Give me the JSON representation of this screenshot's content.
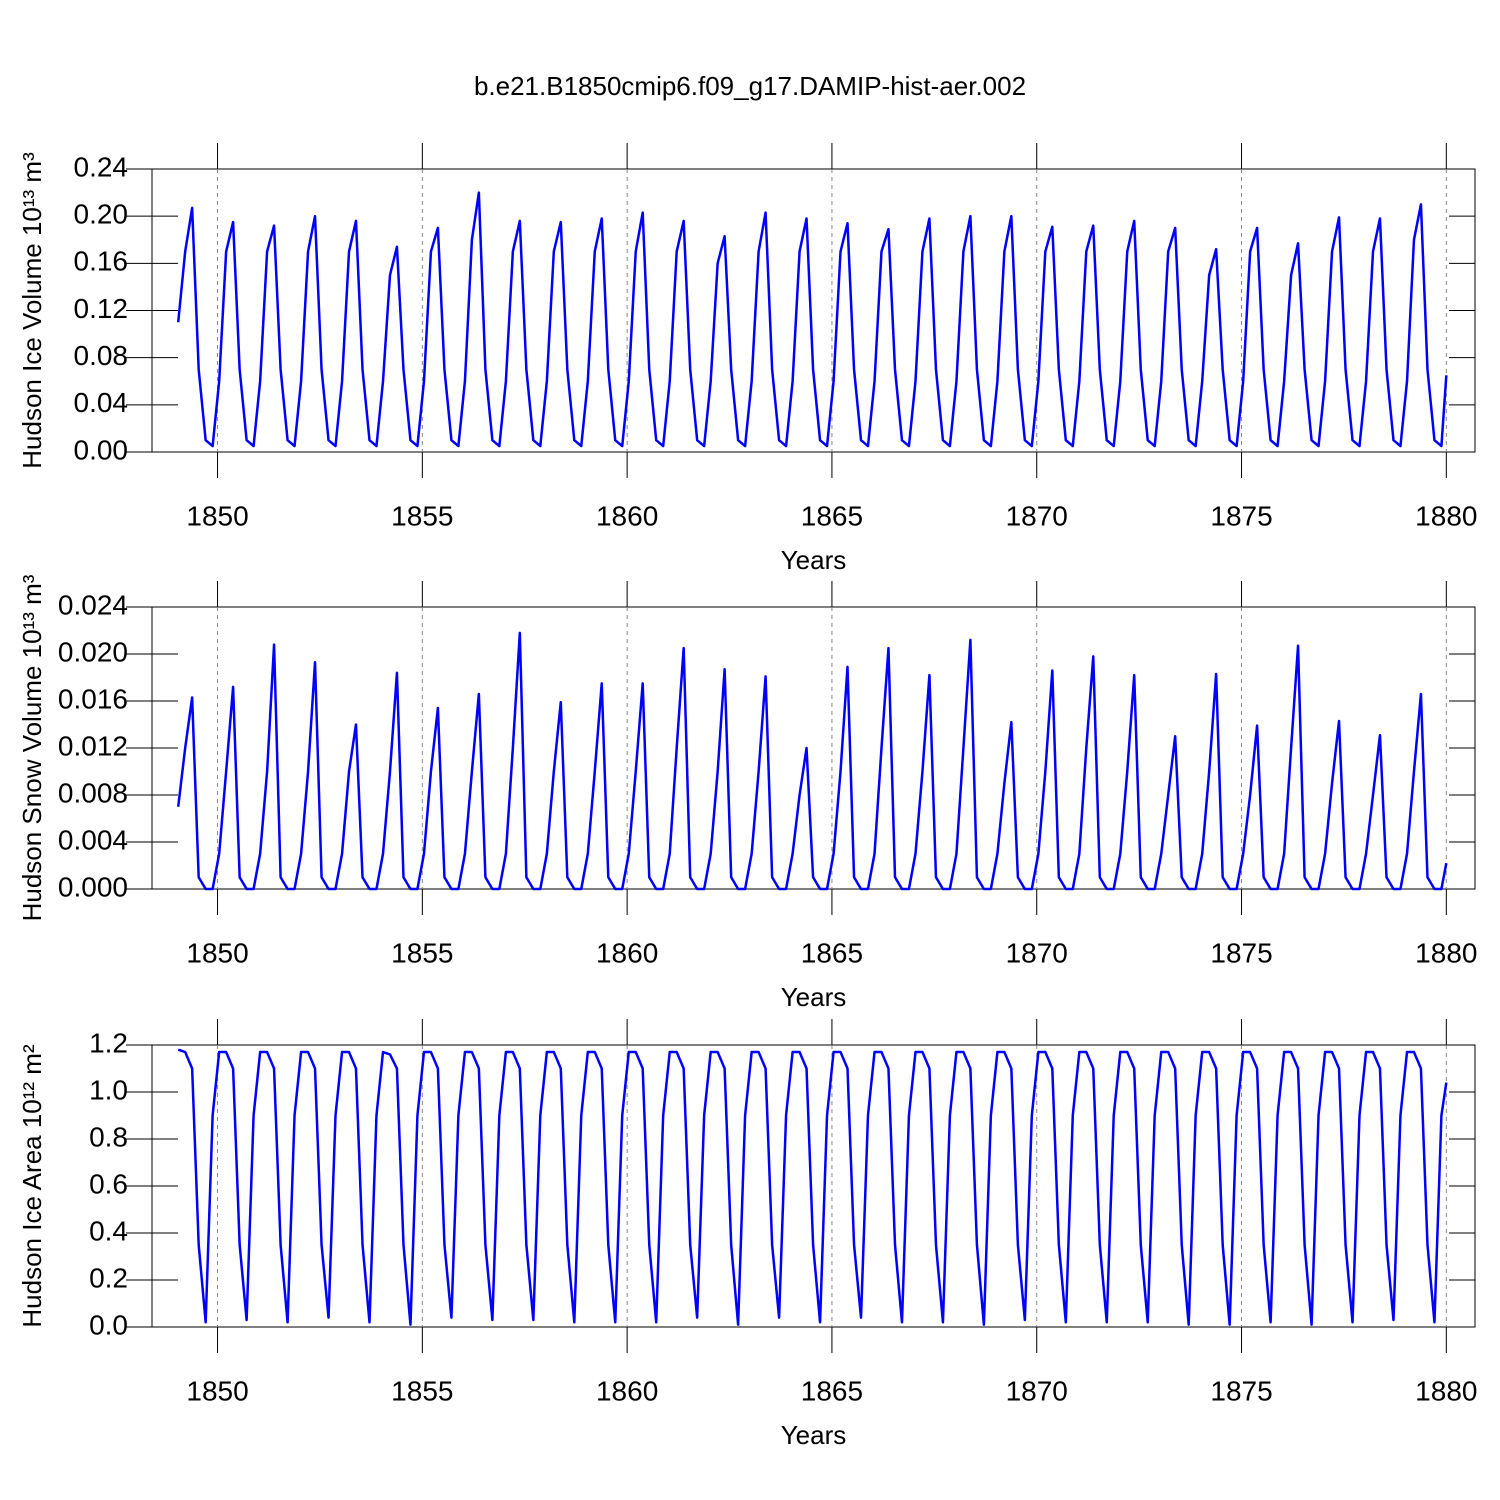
{
  "chart_data": [
    {
      "type": "line",
      "title": "b.e21.B1850cmip6.f09_g17.DAMIP-hist-aer.002",
      "ylabel": "Hudson Ice Volume 10¹³ m³",
      "xlabel": "Years",
      "color": "#0000ff",
      "xgrid": true,
      "xlim": [
        1848.4,
        1880.7
      ],
      "xticks": [
        1850,
        1855,
        1860,
        1865,
        1870,
        1875,
        1880
      ],
      "ylim": [
        0,
        0.24
      ],
      "yticks": [
        {
          "value": 0,
          "label": "0.00"
        },
        0.04,
        0.08,
        0.12,
        0.16,
        {
          "value": 0.2,
          "label": "0.20"
        },
        0.24
      ],
      "x": [
        1849.04,
        1849.21,
        1849.38,
        1849.54,
        1849.71,
        1849.88,
        1850.04,
        1850.21,
        1850.38,
        1850.54,
        1850.71,
        1850.88,
        1851.04,
        1851.21,
        1851.38,
        1851.54,
        1851.71,
        1851.88,
        1852.04,
        1852.21,
        1852.38,
        1852.54,
        1852.71,
        1852.88,
        1853.04,
        1853.21,
        1853.38,
        1853.54,
        1853.71,
        1853.88,
        1854.04,
        1854.21,
        1854.38,
        1854.54,
        1854.71,
        1854.88,
        1855.04,
        1855.21,
        1855.38,
        1855.54,
        1855.71,
        1855.88,
        1856.04,
        1856.21,
        1856.38,
        1856.54,
        1856.71,
        1856.88,
        1857.04,
        1857.21,
        1857.38,
        1857.54,
        1857.71,
        1857.88,
        1858.04,
        1858.21,
        1858.38,
        1858.54,
        1858.71,
        1858.88,
        1859.04,
        1859.21,
        1859.38,
        1859.54,
        1859.71,
        1859.88,
        1860.04,
        1860.21,
        1860.38,
        1860.54,
        1860.71,
        1860.88,
        1861.04,
        1861.21,
        1861.38,
        1861.54,
        1861.71,
        1861.88,
        1862.04,
        1862.21,
        1862.38,
        1862.54,
        1862.71,
        1862.88,
        1863.04,
        1863.21,
        1863.38,
        1863.54,
        1863.71,
        1863.88,
        1864.04,
        1864.21,
        1864.38,
        1864.54,
        1864.71,
        1864.88,
        1865.04,
        1865.21,
        1865.38,
        1865.54,
        1865.71,
        1865.88,
        1866.04,
        1866.21,
        1866.38,
        1866.54,
        1866.71,
        1866.88,
        1867.04,
        1867.21,
        1867.38,
        1867.54,
        1867.71,
        1867.88,
        1868.04,
        1868.21,
        1868.38,
        1868.54,
        1868.71,
        1868.88,
        1869.04,
        1869.21,
        1869.38,
        1869.54,
        1869.71,
        1869.88,
        1870.04,
        1870.21,
        1870.38,
        1870.54,
        1870.71,
        1870.88,
        1871.04,
        1871.21,
        1871.38,
        1871.54,
        1871.71,
        1871.88,
        1872.04,
        1872.21,
        1872.38,
        1872.54,
        1872.71,
        1872.88,
        1873.04,
        1873.21,
        1873.38,
        1873.54,
        1873.71,
        1873.88,
        1874.04,
        1874.21,
        1874.38,
        1874.54,
        1874.71,
        1874.88,
        1875.04,
        1875.21,
        1875.38,
        1875.54,
        1875.71,
        1875.88,
        1876.04,
        1876.21,
        1876.38,
        1876.54,
        1876.71,
        1876.88,
        1877.04,
        1877.21,
        1877.38,
        1877.54,
        1877.71,
        1877.88,
        1878.04,
        1878.21,
        1878.38,
        1878.54,
        1878.71,
        1878.88,
        1879.04,
        1879.21,
        1879.38,
        1879.54,
        1879.71,
        1879.88,
        1880.0
      ],
      "values": [
        0.11,
        0.17,
        0.207,
        0.07,
        0.01,
        0.005,
        0.06,
        0.17,
        0.195,
        0.07,
        0.01,
        0.005,
        0.06,
        0.17,
        0.192,
        0.07,
        0.01,
        0.005,
        0.06,
        0.17,
        0.2,
        0.07,
        0.01,
        0.005,
        0.06,
        0.17,
        0.196,
        0.07,
        0.01,
        0.005,
        0.06,
        0.15,
        0.174,
        0.07,
        0.01,
        0.005,
        0.06,
        0.17,
        0.19,
        0.07,
        0.01,
        0.005,
        0.06,
        0.18,
        0.22,
        0.07,
        0.01,
        0.005,
        0.06,
        0.17,
        0.196,
        0.07,
        0.01,
        0.005,
        0.06,
        0.17,
        0.195,
        0.07,
        0.01,
        0.005,
        0.06,
        0.17,
        0.198,
        0.07,
        0.01,
        0.005,
        0.06,
        0.17,
        0.203,
        0.07,
        0.01,
        0.005,
        0.06,
        0.17,
        0.196,
        0.07,
        0.01,
        0.005,
        0.06,
        0.16,
        0.183,
        0.07,
        0.01,
        0.005,
        0.06,
        0.17,
        0.203,
        0.07,
        0.01,
        0.005,
        0.06,
        0.17,
        0.198,
        0.07,
        0.01,
        0.005,
        0.06,
        0.17,
        0.194,
        0.07,
        0.01,
        0.005,
        0.06,
        0.17,
        0.189,
        0.07,
        0.01,
        0.005,
        0.06,
        0.17,
        0.198,
        0.07,
        0.01,
        0.005,
        0.06,
        0.17,
        0.2,
        0.07,
        0.01,
        0.005,
        0.06,
        0.17,
        0.2,
        0.07,
        0.01,
        0.005,
        0.06,
        0.17,
        0.191,
        0.07,
        0.01,
        0.005,
        0.06,
        0.17,
        0.192,
        0.07,
        0.01,
        0.005,
        0.06,
        0.17,
        0.196,
        0.07,
        0.01,
        0.005,
        0.06,
        0.17,
        0.19,
        0.07,
        0.01,
        0.005,
        0.06,
        0.15,
        0.172,
        0.07,
        0.01,
        0.005,
        0.06,
        0.17,
        0.19,
        0.07,
        0.01,
        0.005,
        0.06,
        0.15,
        0.177,
        0.07,
        0.01,
        0.005,
        0.06,
        0.17,
        0.199,
        0.07,
        0.01,
        0.005,
        0.06,
        0.17,
        0.198,
        0.07,
        0.01,
        0.005,
        0.06,
        0.18,
        0.21,
        0.07,
        0.01,
        0.005,
        0.065
      ]
    },
    {
      "type": "line",
      "ylabel": "Hudson Snow Volume 10¹³ m³",
      "xlabel": "Years",
      "color": "#0000ff",
      "xgrid": true,
      "xlim": [
        1848.4,
        1880.7
      ],
      "xticks": [
        1850,
        1855,
        1860,
        1865,
        1870,
        1875,
        1880
      ],
      "ylim": [
        0,
        0.024
      ],
      "yticks": [
        {
          "value": 0,
          "label": "0.000"
        },
        0.004,
        0.008,
        0.012,
        0.016,
        {
          "value": 0.02,
          "label": "0.020"
        },
        0.024
      ],
      "x": [
        1849.04,
        1849.21,
        1849.38,
        1849.54,
        1849.71,
        1849.88,
        1850.04,
        1850.21,
        1850.38,
        1850.54,
        1850.71,
        1850.88,
        1851.04,
        1851.21,
        1851.38,
        1851.54,
        1851.71,
        1851.88,
        1852.04,
        1852.21,
        1852.38,
        1852.54,
        1852.71,
        1852.88,
        1853.04,
        1853.21,
        1853.38,
        1853.54,
        1853.71,
        1853.88,
        1854.04,
        1854.21,
        1854.38,
        1854.54,
        1854.71,
        1854.88,
        1855.04,
        1855.21,
        1855.38,
        1855.54,
        1855.71,
        1855.88,
        1856.04,
        1856.21,
        1856.38,
        1856.54,
        1856.71,
        1856.88,
        1857.04,
        1857.21,
        1857.38,
        1857.54,
        1857.71,
        1857.88,
        1858.04,
        1858.21,
        1858.38,
        1858.54,
        1858.71,
        1858.88,
        1859.04,
        1859.21,
        1859.38,
        1859.54,
        1859.71,
        1859.88,
        1860.04,
        1860.21,
        1860.38,
        1860.54,
        1860.71,
        1860.88,
        1861.04,
        1861.21,
        1861.38,
        1861.54,
        1861.71,
        1861.88,
        1862.04,
        1862.21,
        1862.38,
        1862.54,
        1862.71,
        1862.88,
        1863.04,
        1863.21,
        1863.38,
        1863.54,
        1863.71,
        1863.88,
        1864.04,
        1864.21,
        1864.38,
        1864.54,
        1864.71,
        1864.88,
        1865.04,
        1865.21,
        1865.38,
        1865.54,
        1865.71,
        1865.88,
        1866.04,
        1866.21,
        1866.38,
        1866.54,
        1866.71,
        1866.88,
        1867.04,
        1867.21,
        1867.38,
        1867.54,
        1867.71,
        1867.88,
        1868.04,
        1868.21,
        1868.38,
        1868.54,
        1868.71,
        1868.88,
        1869.04,
        1869.21,
        1869.38,
        1869.54,
        1869.71,
        1869.88,
        1870.04,
        1870.21,
        1870.38,
        1870.54,
        1870.71,
        1870.88,
        1871.04,
        1871.21,
        1871.38,
        1871.54,
        1871.71,
        1871.88,
        1872.04,
        1872.21,
        1872.38,
        1872.54,
        1872.71,
        1872.88,
        1873.04,
        1873.21,
        1873.38,
        1873.54,
        1873.71,
        1873.88,
        1874.04,
        1874.21,
        1874.38,
        1874.54,
        1874.71,
        1874.88,
        1875.04,
        1875.21,
        1875.38,
        1875.54,
        1875.71,
        1875.88,
        1876.04,
        1876.21,
        1876.38,
        1876.54,
        1876.71,
        1876.88,
        1877.04,
        1877.21,
        1877.38,
        1877.54,
        1877.71,
        1877.88,
        1878.04,
        1878.21,
        1878.38,
        1878.54,
        1878.71,
        1878.88,
        1879.04,
        1879.21,
        1879.38,
        1879.54,
        1879.71,
        1879.88,
        1880.0
      ],
      "values": [
        0.007,
        0.012,
        0.0163,
        0.001,
        0,
        0,
        0.003,
        0.01,
        0.0172,
        0.001,
        0,
        0,
        0.003,
        0.01,
        0.0208,
        0.001,
        0,
        0,
        0.003,
        0.01,
        0.0193,
        0.001,
        0,
        0,
        0.003,
        0.01,
        0.014,
        0.001,
        0,
        0,
        0.003,
        0.01,
        0.0184,
        0.001,
        0,
        0,
        0.003,
        0.01,
        0.0154,
        0.001,
        0,
        0,
        0.003,
        0.01,
        0.0166,
        0.001,
        0,
        0,
        0.003,
        0.012,
        0.0218,
        0.001,
        0,
        0,
        0.003,
        0.01,
        0.0159,
        0.001,
        0,
        0,
        0.003,
        0.01,
        0.0175,
        0.001,
        0,
        0,
        0.003,
        0.01,
        0.0175,
        0.001,
        0,
        0,
        0.003,
        0.012,
        0.0205,
        0.001,
        0,
        0,
        0.003,
        0.01,
        0.0187,
        0.001,
        0,
        0,
        0.003,
        0.01,
        0.0181,
        0.001,
        0,
        0,
        0.003,
        0.008,
        0.012,
        0.001,
        0,
        0,
        0.003,
        0.01,
        0.0189,
        0.001,
        0,
        0,
        0.003,
        0.012,
        0.0205,
        0.001,
        0,
        0,
        0.003,
        0.01,
        0.0182,
        0.001,
        0,
        0,
        0.003,
        0.012,
        0.0212,
        0.001,
        0,
        0,
        0.003,
        0.009,
        0.0142,
        0.001,
        0,
        0,
        0.003,
        0.01,
        0.0186,
        0.001,
        0,
        0,
        0.003,
        0.012,
        0.0198,
        0.001,
        0,
        0,
        0.003,
        0.01,
        0.0182,
        0.001,
        0,
        0,
        0.003,
        0.008,
        0.013,
        0.001,
        0,
        0,
        0.003,
        0.01,
        0.0183,
        0.001,
        0,
        0,
        0.003,
        0.008,
        0.0139,
        0.001,
        0,
        0,
        0.003,
        0.012,
        0.0207,
        0.001,
        0,
        0,
        0.003,
        0.009,
        0.0143,
        0.001,
        0,
        0,
        0.003,
        0.008,
        0.0131,
        0.001,
        0,
        0,
        0.003,
        0.01,
        0.0166,
        0.001,
        0,
        0,
        0.0022
      ]
    },
    {
      "type": "line",
      "ylabel": "Hudson Ice Area 10¹² m²",
      "xlabel": "Years",
      "color": "#0000ff",
      "xgrid": true,
      "xlim": [
        1848.4,
        1880.7
      ],
      "xticks": [
        1850,
        1855,
        1860,
        1865,
        1870,
        1875,
        1880
      ],
      "ylim": [
        0,
        1.2
      ],
      "yticks": [
        {
          "value": 0,
          "label": "0.0"
        },
        0.2,
        0.4,
        0.6,
        0.8,
        {
          "value": 1,
          "label": "1.0"
        },
        1.2
      ],
      "x": [
        1849.04,
        1849.21,
        1849.38,
        1849.54,
        1849.71,
        1849.88,
        1850.04,
        1850.21,
        1850.38,
        1850.54,
        1850.71,
        1850.88,
        1851.04,
        1851.21,
        1851.38,
        1851.54,
        1851.71,
        1851.88,
        1852.04,
        1852.21,
        1852.38,
        1852.54,
        1852.71,
        1852.88,
        1853.04,
        1853.21,
        1853.38,
        1853.54,
        1853.71,
        1853.88,
        1854.04,
        1854.21,
        1854.38,
        1854.54,
        1854.71,
        1854.88,
        1855.04,
        1855.21,
        1855.38,
        1855.54,
        1855.71,
        1855.88,
        1856.04,
        1856.21,
        1856.38,
        1856.54,
        1856.71,
        1856.88,
        1857.04,
        1857.21,
        1857.38,
        1857.54,
        1857.71,
        1857.88,
        1858.04,
        1858.21,
        1858.38,
        1858.54,
        1858.71,
        1858.88,
        1859.04,
        1859.21,
        1859.38,
        1859.54,
        1859.71,
        1859.88,
        1860.04,
        1860.21,
        1860.38,
        1860.54,
        1860.71,
        1860.88,
        1861.04,
        1861.21,
        1861.38,
        1861.54,
        1861.71,
        1861.88,
        1862.04,
        1862.21,
        1862.38,
        1862.54,
        1862.71,
        1862.88,
        1863.04,
        1863.21,
        1863.38,
        1863.54,
        1863.71,
        1863.88,
        1864.04,
        1864.21,
        1864.38,
        1864.54,
        1864.71,
        1864.88,
        1865.04,
        1865.21,
        1865.38,
        1865.54,
        1865.71,
        1865.88,
        1866.04,
        1866.21,
        1866.38,
        1866.54,
        1866.71,
        1866.88,
        1867.04,
        1867.21,
        1867.38,
        1867.54,
        1867.71,
        1867.88,
        1868.04,
        1868.21,
        1868.38,
        1868.54,
        1868.71,
        1868.88,
        1869.04,
        1869.21,
        1869.38,
        1869.54,
        1869.71,
        1869.88,
        1870.04,
        1870.21,
        1870.38,
        1870.54,
        1870.71,
        1870.88,
        1871.04,
        1871.21,
        1871.38,
        1871.54,
        1871.71,
        1871.88,
        1872.04,
        1872.21,
        1872.38,
        1872.54,
        1872.71,
        1872.88,
        1873.04,
        1873.21,
        1873.38,
        1873.54,
        1873.71,
        1873.88,
        1874.04,
        1874.21,
        1874.38,
        1874.54,
        1874.71,
        1874.88,
        1875.04,
        1875.21,
        1875.38,
        1875.54,
        1875.71,
        1875.88,
        1876.04,
        1876.21,
        1876.38,
        1876.54,
        1876.71,
        1876.88,
        1877.04,
        1877.21,
        1877.38,
        1877.54,
        1877.71,
        1877.88,
        1878.04,
        1878.21,
        1878.38,
        1878.54,
        1878.71,
        1878.88,
        1879.04,
        1879.21,
        1879.38,
        1879.54,
        1879.71,
        1879.88,
        1880.0
      ],
      "values": [
        1.18,
        1.17,
        1.1,
        0.35,
        0.02,
        0.9,
        1.17,
        1.17,
        1.1,
        0.35,
        0.03,
        0.9,
        1.17,
        1.17,
        1.1,
        0.35,
        0.02,
        0.9,
        1.17,
        1.17,
        1.1,
        0.35,
        0.04,
        0.9,
        1.17,
        1.17,
        1.1,
        0.35,
        0.02,
        0.9,
        1.17,
        1.16,
        1.1,
        0.35,
        0.01,
        0.9,
        1.17,
        1.17,
        1.1,
        0.35,
        0.04,
        0.9,
        1.17,
        1.17,
        1.1,
        0.35,
        0.03,
        0.9,
        1.17,
        1.17,
        1.1,
        0.35,
        0.03,
        0.9,
        1.17,
        1.17,
        1.1,
        0.35,
        0.02,
        0.9,
        1.17,
        1.17,
        1.1,
        0.35,
        0.02,
        0.9,
        1.17,
        1.17,
        1.1,
        0.35,
        0.02,
        0.9,
        1.17,
        1.17,
        1.1,
        0.35,
        0.04,
        0.9,
        1.17,
        1.17,
        1.1,
        0.35,
        0.01,
        0.9,
        1.17,
        1.17,
        1.1,
        0.35,
        0.04,
        0.9,
        1.17,
        1.17,
        1.1,
        0.35,
        0.02,
        0.9,
        1.17,
        1.17,
        1.1,
        0.35,
        0.04,
        0.9,
        1.17,
        1.17,
        1.1,
        0.35,
        0.02,
        0.9,
        1.17,
        1.17,
        1.1,
        0.35,
        0.02,
        0.9,
        1.17,
        1.17,
        1.1,
        0.35,
        0.01,
        0.9,
        1.17,
        1.17,
        1.1,
        0.35,
        0.03,
        0.9,
        1.17,
        1.17,
        1.1,
        0.35,
        0.02,
        0.9,
        1.17,
        1.17,
        1.1,
        0.35,
        0.02,
        0.9,
        1.17,
        1.17,
        1.1,
        0.35,
        0.02,
        0.9,
        1.17,
        1.17,
        1.1,
        0.35,
        0.01,
        0.9,
        1.17,
        1.17,
        1.1,
        0.35,
        0.01,
        0.9,
        1.17,
        1.17,
        1.1,
        0.35,
        0.02,
        0.9,
        1.17,
        1.17,
        1.1,
        0.35,
        0.01,
        0.9,
        1.17,
        1.17,
        1.1,
        0.35,
        0.02,
        0.9,
        1.17,
        1.17,
        1.1,
        0.35,
        0.03,
        0.9,
        1.17,
        1.17,
        1.1,
        0.35,
        0.02,
        0.9,
        1.04
      ]
    }
  ]
}
